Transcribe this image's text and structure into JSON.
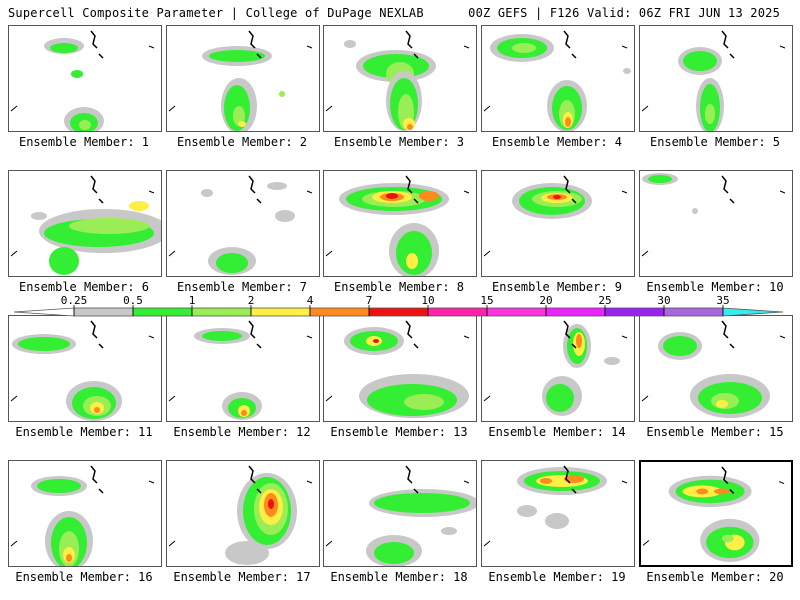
{
  "header": {
    "title": "Supercell Composite Parameter | College of DuPage NEXLAB",
    "run_info": "00Z GEFS | F126 Valid: 06Z FRI JUN 13 2025"
  },
  "label_prefix": "Ensemble Member: ",
  "selected_member": 20,
  "members": [
    1,
    2,
    3,
    4,
    5,
    6,
    7,
    8,
    9,
    10,
    11,
    12,
    13,
    14,
    15,
    16,
    17,
    18,
    19,
    20
  ],
  "legend": {
    "thresholds": [
      "0.25",
      "0.5",
      "1",
      "2",
      "4",
      "7",
      "10",
      "15",
      "20",
      "25",
      "30",
      "35"
    ],
    "colors": [
      "#c8c8c8",
      "#33ee33",
      "#99ee55",
      "#ffee44",
      "#ff8a1e",
      "#ee1111",
      "#ff22aa",
      "#ff33dd",
      "#ee22ff",
      "#9922ee",
      "#aa66dd",
      "#33eeee"
    ]
  },
  "colors": {
    "gray": "#c8c8c8",
    "green": "#33ee33",
    "lightgreen": "#99ee55",
    "yellow": "#ffee44",
    "orange": "#ff8a1e",
    "red": "#ee1111"
  }
}
